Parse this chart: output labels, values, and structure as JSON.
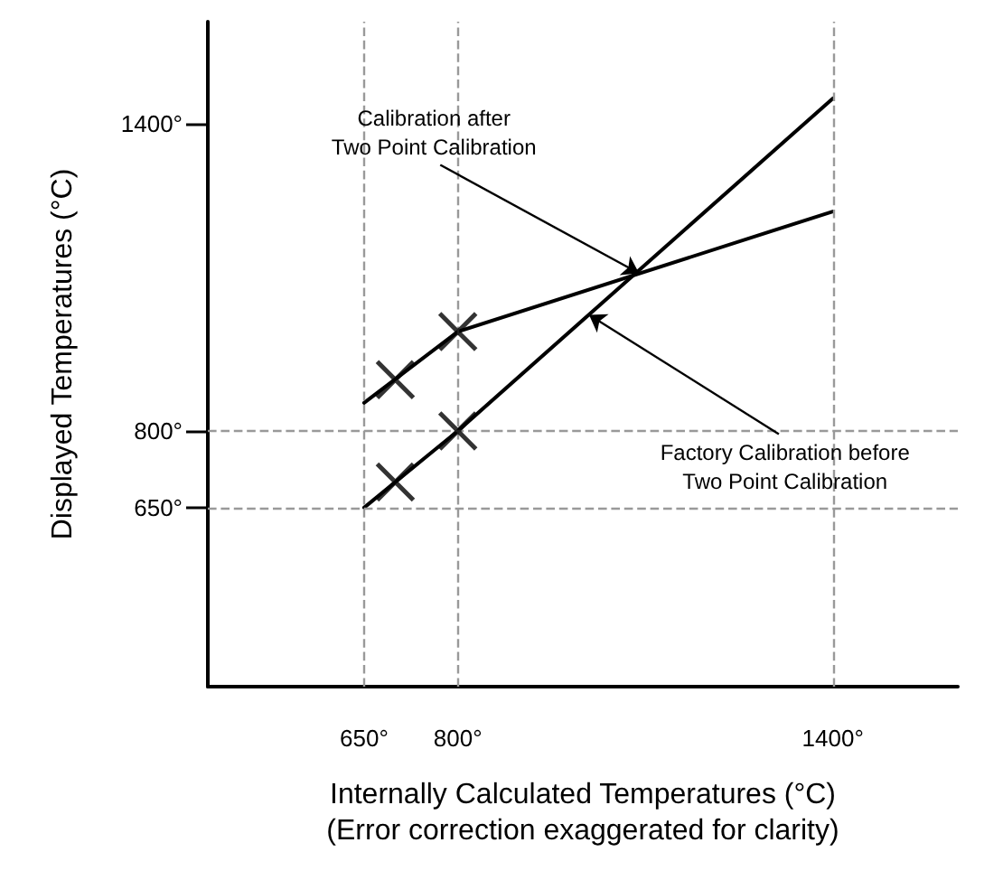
{
  "chart_data": {
    "type": "line",
    "xlabel": "Internally Calculated Temperatures (°C)\n(Error correction exaggerated for clarity)",
    "ylabel": "Displayed Temperatures (°C)",
    "xlim": [
      400,
      1600
    ],
    "ylim": [
      300,
      1600
    ],
    "xticks": [
      {
        "value": 650,
        "label": "650°"
      },
      {
        "value": 800,
        "label": "800°"
      },
      {
        "value": 1400,
        "label": "1400°"
      }
    ],
    "yticks": [
      {
        "value": 650,
        "label": "650°"
      },
      {
        "value": 800,
        "label": "800°"
      },
      {
        "value": 1400,
        "label": "1400°"
      }
    ],
    "grid": false,
    "series": [
      {
        "color": "#000000",
        "x": [
          650,
          800,
          1400
        ],
        "values": [
          650,
          800,
          1450
        ]
      },
      {
        "color": "#000000",
        "x": [
          650,
          800,
          1400
        ],
        "values": [
          855,
          994,
          1229
        ]
      },
      {
        "type": "scatter",
        "marker": "cross",
        "color": "#000000",
        "x": [
          700,
          800,
          700,
          800
        ],
        "values": [
          700,
          800,
          900,
          994
        ]
      }
    ],
    "ref_lines": [
      {
        "axis": "x",
        "value": 650,
        "color": "#999999",
        "line_style": "dashed"
      },
      {
        "axis": "x",
        "value": 800,
        "color": "#999999",
        "line_style": "dashed"
      },
      {
        "axis": "x",
        "value": 1400,
        "color": "#999999",
        "line_style": "dashed"
      },
      {
        "axis": "y",
        "value": 650,
        "color": "#999999",
        "line_style": "dashed"
      },
      {
        "axis": "y",
        "value": 800,
        "color": "#999999",
        "line_style": "dashed"
      }
    ],
    "annotations": [
      {
        "text": "Calibration after\nTwo Point Calibration",
        "x": 1090,
        "y": 1108
      },
      {
        "text": "Factory Calibration before\nTwo Point Calibration",
        "x": 1010,
        "y": 1027
      }
    ]
  }
}
